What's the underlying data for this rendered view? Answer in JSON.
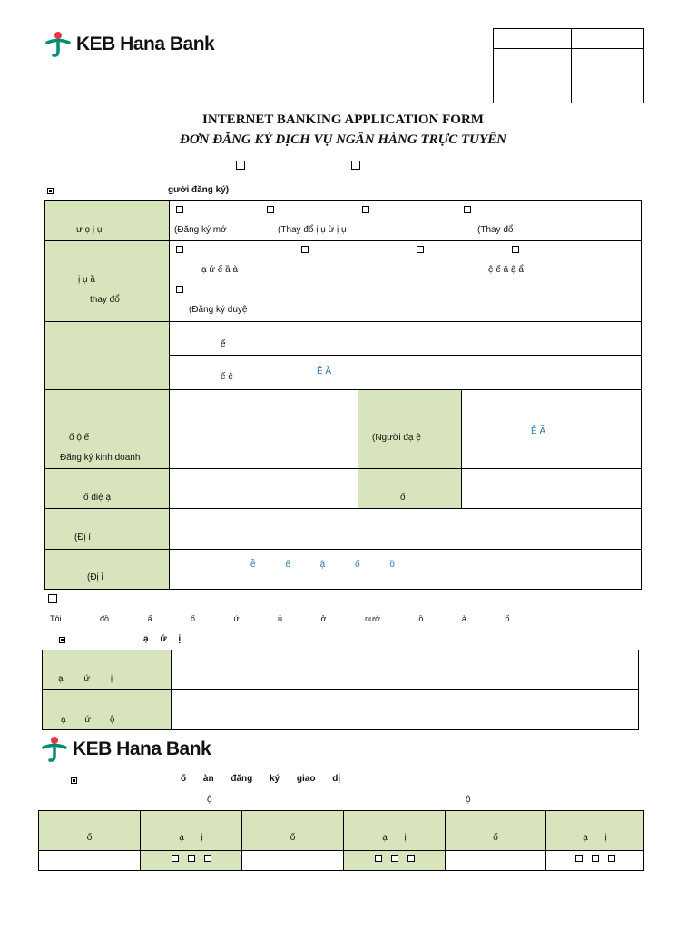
{
  "brand": {
    "name": "KEB Hana Bank"
  },
  "titles": {
    "en": "INTERNET BANKING APPLICATION FORM",
    "vi": "ĐƠN ĐĂNG KÝ DỊCH VỤ NGÂN HÀNG TRỰC TUYẾN"
  },
  "section1": {
    "heading": "gười đăng ký)",
    "row1": {
      "label": "ư ọ ị ụ",
      "options": [
        "(Đăng ký mớ",
        "(Thay đổ ị ụ ừ ị ụ",
        "(Thay đổ"
      ]
    },
    "row2": {
      "label_line1": "ị ụ ầ",
      "label_line2": "thay đổ",
      "line1_a": "ạ ứ ế ầ à",
      "line1_b": "ệ ế ậ ậ ẩ",
      "line2": "(Đăng ký duyệ"
    },
    "row3": {
      "line1": "ế",
      "line2": "ế ệ",
      "blue": "Ễ   Ă"
    },
    "row4": {
      "label_line1": "ố ộ ế",
      "label_line2": "Đăng ký kinh doanh",
      "mid_label": "(Người đạ ệ",
      "blue": "Ễ   Ă"
    },
    "row5": {
      "label": "ố điệ ạ",
      "mid_label": "ố"
    },
    "row6": {
      "label": "(Đị ỉ"
    },
    "row7": {
      "label": "(Đị ỉ",
      "blue": "ễ   ế   ậ   ố ồ"
    }
  },
  "agreement": {
    "text": "Tôi đồ ấ ố ứ ủ ở nướ ồ ả ố"
  },
  "section2": {
    "heading": "ạ ứ ị",
    "row1_label": "ạ ứ ị",
    "row2_label": "ạ ứ ộ"
  },
  "section3": {
    "heading": "ố àn đăng ký giao dị",
    "sub_left": "ộ",
    "sub_right": "ộ",
    "columns": [
      "ố",
      "ạ ị",
      "ố",
      "ạ ị",
      "ố",
      "ạ ị"
    ]
  }
}
